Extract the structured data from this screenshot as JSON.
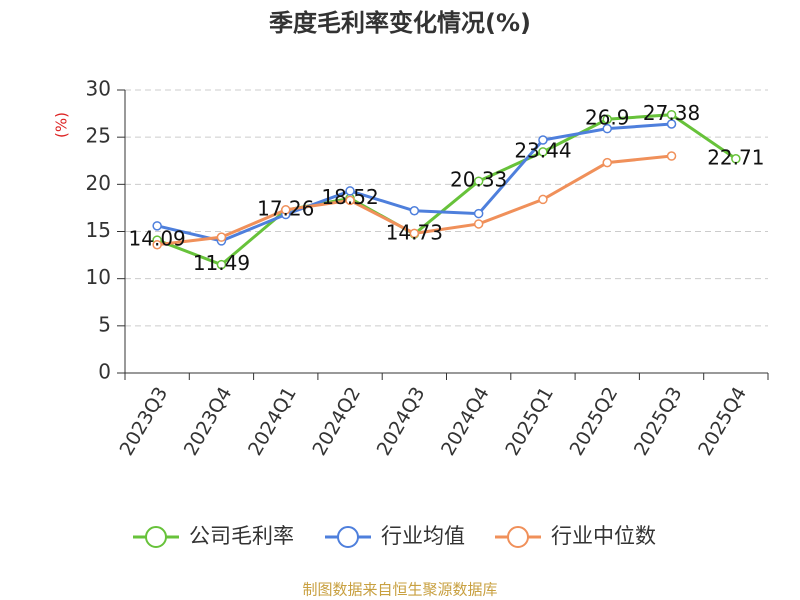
{
  "chart_data": {
    "type": "line",
    "title": "季度毛利率变化情况(%)",
    "y_label": "(%)",
    "source": "制图数据来自恒生聚源数据库",
    "categories": [
      "2023Q3",
      "2023Q4",
      "2024Q1",
      "2024Q2",
      "2024Q3",
      "2024Q4",
      "2025Q1",
      "2025Q2",
      "2025Q3",
      "2025Q4"
    ],
    "series": [
      {
        "name": "公司毛利率",
        "color": "#67c23a",
        "labels": true,
        "values": [
          14.09,
          11.49,
          17.26,
          18.52,
          14.73,
          20.33,
          23.44,
          26.9,
          27.38,
          22.71
        ]
      },
      {
        "name": "行业均值",
        "color": "#4e7fdc",
        "values": [
          15.6,
          14.0,
          16.8,
          19.3,
          17.2,
          16.9,
          24.7,
          25.9,
          26.4,
          null
        ]
      },
      {
        "name": "行业中位数",
        "color": "#f0905a",
        "values": [
          13.6,
          14.4,
          17.3,
          18.3,
          14.8,
          15.8,
          18.4,
          22.3,
          23.0,
          null
        ]
      }
    ],
    "ylim": [
      0,
      30
    ],
    "yticks": [
      0,
      5,
      10,
      15,
      20,
      25,
      30
    ],
    "grid": true
  }
}
